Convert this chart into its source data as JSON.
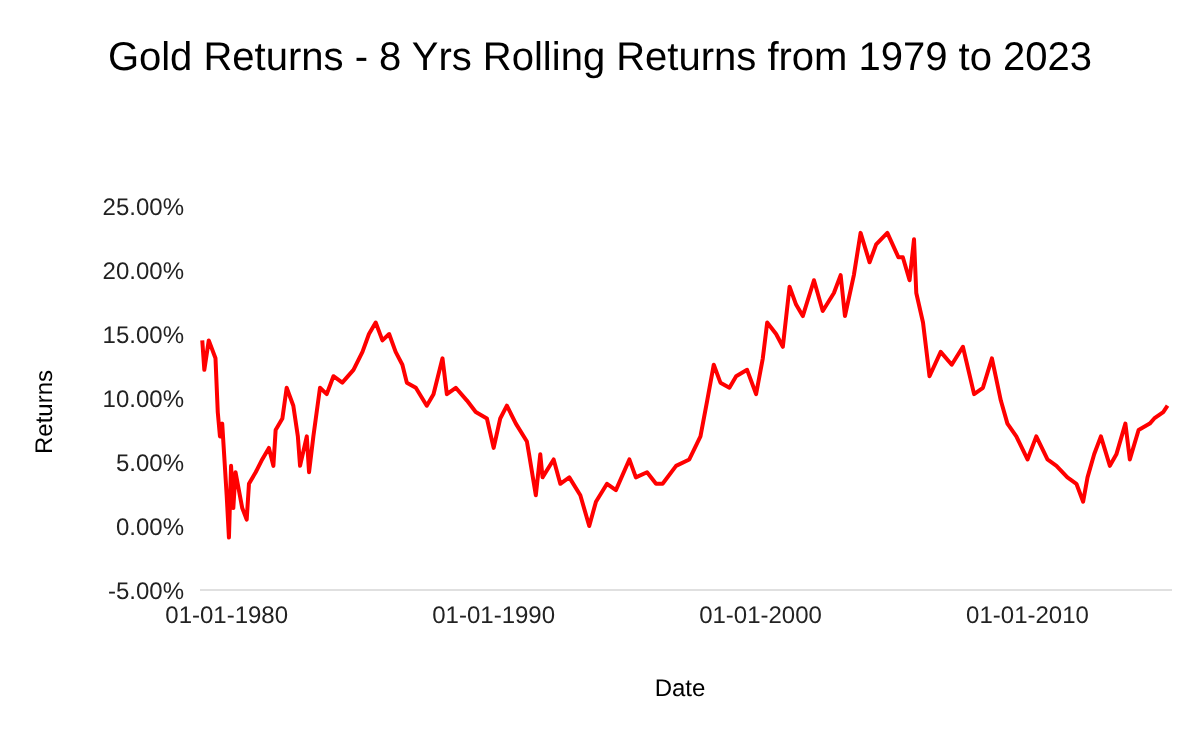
{
  "chart_data": {
    "type": "line",
    "title": "Gold Returns - 8 Yrs Rolling Returns from 1979 to 2023",
    "xlabel": "Date",
    "ylabel": "Returns",
    "x": [
      "1979-02",
      "1979-03",
      "1979-05",
      "1979-08",
      "1979-09",
      "1979-10",
      "1979-11",
      "1980-01",
      "1980-02",
      "1980-03",
      "1980-04",
      "1980-05",
      "1980-08",
      "1980-10",
      "1980-11",
      "1981-02",
      "1981-05",
      "1981-08",
      "1981-10",
      "1981-11",
      "1982-02",
      "1982-04",
      "1982-07",
      "1982-09",
      "1982-10",
      "1983-01",
      "1983-02",
      "1983-04",
      "1983-07",
      "1983-10",
      "1984-01",
      "1984-05",
      "1984-10",
      "1985-02",
      "1985-05",
      "1985-08",
      "1985-11",
      "1986-02",
      "1986-05",
      "1986-08",
      "1986-10",
      "1987-02",
      "1987-07",
      "1987-10",
      "1988-02",
      "1988-04",
      "1988-08",
      "1989-01",
      "1989-05",
      "1989-10",
      "1990-01",
      "1990-04",
      "1990-07",
      "1990-11",
      "1991-04",
      "1991-05",
      "1991-08",
      "1991-10",
      "1991-11",
      "1992-04",
      "1992-07",
      "1992-11",
      "1993-04",
      "1993-08",
      "1993-11",
      "1994-04",
      "1994-08",
      "1995-02",
      "1995-05",
      "1995-10",
      "1996-02",
      "1996-05",
      "1996-11",
      "1997-05",
      "1997-10",
      "1998-01",
      "1998-04",
      "1998-07",
      "1998-11",
      "1999-02",
      "1999-07",
      "1999-11",
      "2000-02",
      "2000-04",
      "2000-08",
      "2000-11",
      "2001-02",
      "2001-05",
      "2001-08",
      "2002-01",
      "2002-05",
      "2002-10",
      "2003-01",
      "2003-03",
      "2003-07",
      "2003-10",
      "2004-02",
      "2004-05",
      "2004-10",
      "2005-03",
      "2005-05",
      "2005-08",
      "2005-10",
      "2005-11",
      "2006-02",
      "2006-05",
      "2006-10",
      "2007-03",
      "2007-08",
      "2008-01",
      "2008-05",
      "2008-09",
      "2009-01",
      "2009-04",
      "2009-08",
      "2010-01",
      "2010-05",
      "2010-10",
      "2011-02",
      "2011-07",
      "2011-11",
      "2012-02",
      "2012-04",
      "2012-07",
      "2012-10",
      "2013-02",
      "2013-05",
      "2013-09",
      "2013-11",
      "2014-03",
      "2014-08",
      "2014-10",
      "2015-02",
      "2015-04"
    ],
    "series": [
      {
        "color": "#ff0000",
        "values": [
          14.5,
          12.2,
          14.5,
          13.1,
          8.9,
          7.0,
          8.0,
          2.4,
          -0.9,
          4.7,
          1.4,
          4.2,
          1.4,
          0.5,
          3.3,
          4.2,
          5.2,
          6.1,
          4.7,
          7.5,
          8.4,
          10.8,
          9.4,
          7.0,
          4.7,
          7.0,
          4.2,
          7.0,
          10.8,
          10.3,
          11.7,
          11.2,
          12.2,
          13.6,
          15.0,
          15.9,
          14.5,
          15.0,
          13.6,
          12.6,
          11.2,
          10.8,
          9.4,
          10.3,
          13.1,
          10.3,
          10.8,
          9.8,
          8.9,
          8.4,
          6.1,
          8.4,
          9.4,
          8.0,
          6.6,
          5.6,
          2.4,
          5.6,
          3.8,
          5.2,
          3.3,
          3.8,
          2.4,
          0.0,
          1.9,
          3.3,
          2.8,
          5.2,
          3.8,
          4.2,
          3.3,
          3.3,
          4.7,
          5.2,
          7.0,
          9.8,
          12.6,
          11.2,
          10.8,
          11.7,
          12.2,
          10.3,
          13.1,
          15.9,
          15.0,
          14.0,
          18.7,
          17.3,
          16.4,
          19.2,
          16.8,
          18.2,
          19.6,
          16.4,
          19.6,
          22.9,
          20.6,
          22.0,
          22.9,
          21.0,
          21.0,
          19.2,
          22.4,
          18.2,
          15.9,
          11.7,
          13.6,
          12.6,
          14.0,
          10.3,
          10.8,
          13.1,
          9.8,
          8.0,
          7.0,
          5.2,
          7.0,
          5.2,
          4.7,
          3.8,
          3.3,
          1.9,
          3.8,
          5.6,
          7.0,
          4.7,
          5.6,
          8.0,
          5.2,
          7.5,
          8.0,
          8.4,
          8.9,
          9.4
        ]
      }
    ],
    "xlim": [
      "1979-01",
      "2015-06"
    ],
    "xticks": [
      {
        "value": "1980-01-01",
        "label": "01-01-1980"
      },
      {
        "value": "1990-01-01",
        "label": "01-01-1990"
      },
      {
        "value": "2000-01-01",
        "label": "01-01-2000"
      },
      {
        "value": "2010-01-01",
        "label": "01-01-2010"
      }
    ],
    "ylim": [
      -5,
      25
    ],
    "yticks": [
      {
        "value": -5,
        "label": "-5.00%"
      },
      {
        "value": 0,
        "label": "0.00%"
      },
      {
        "value": 5,
        "label": "5.00%"
      },
      {
        "value": 10,
        "label": "10.00%"
      },
      {
        "value": 15,
        "label": "15.00%"
      },
      {
        "value": 20,
        "label": "20.00%"
      },
      {
        "value": 25,
        "label": "25.00%"
      }
    ],
    "marker": "none",
    "line_style": "solid"
  }
}
